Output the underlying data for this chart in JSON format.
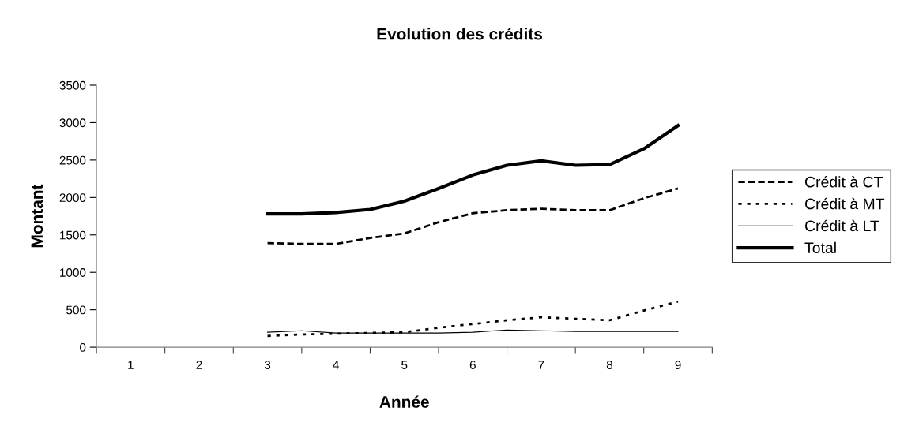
{
  "chart_data": {
    "type": "line",
    "title": "Evolution des crédits",
    "xlabel": "Année",
    "ylabel": "Montant",
    "xlim": [
      0.5,
      9.5
    ],
    "xticks": [
      {
        "value": 0.5,
        "label": null
      },
      1,
      {
        "value": 1.5,
        "label": null
      },
      2,
      {
        "value": 2.5,
        "label": null
      },
      3,
      {
        "value": 3.5,
        "label": null
      },
      4,
      {
        "value": 4.5,
        "label": null
      },
      5,
      {
        "value": 5.5,
        "label": null
      },
      6,
      {
        "value": 6.5,
        "label": null
      },
      7,
      {
        "value": 7.5,
        "label": null
      },
      8,
      {
        "value": 8.5,
        "label": null
      },
      9,
      {
        "value": 9.5,
        "label": null
      }
    ],
    "ylim": [
      0,
      3500
    ],
    "yticks": [
      0,
      500,
      1000,
      1500,
      2000,
      2500,
      3000,
      3500
    ],
    "x": [
      3,
      3.5,
      4,
      4.5,
      5,
      5.5,
      6,
      6.5,
      7,
      7.5,
      8,
      8.5,
      9
    ],
    "series": [
      {
        "name": "Crédit à CT",
        "color": "#000000",
        "line_style": "dashed",
        "values": [
          1390,
          1380,
          1380,
          1460,
          1520,
          1670,
          1790,
          1830,
          1850,
          1830,
          1830,
          1990,
          2120
        ]
      },
      {
        "name": "Crédit à MT",
        "color": "#000000",
        "line_style": "dotted",
        "values": [
          150,
          170,
          180,
          190,
          200,
          260,
          310,
          360,
          400,
          380,
          360,
          490,
          610
        ]
      },
      {
        "name": "Crédit à LT",
        "color": "#000000",
        "line_style": "solid",
        "values": [
          200,
          220,
          190,
          190,
          190,
          190,
          200,
          230,
          220,
          210,
          210,
          210,
          210
        ]
      },
      {
        "name": "Total",
        "color": "#000000",
        "line_style": "solid",
        "values": [
          1780,
          1780,
          1800,
          1840,
          1950,
          2120,
          2300,
          2430,
          2490,
          2430,
          2440,
          2650,
          2960
        ]
      }
    ],
    "grid": false,
    "legend": "right",
    "marker": "none"
  }
}
